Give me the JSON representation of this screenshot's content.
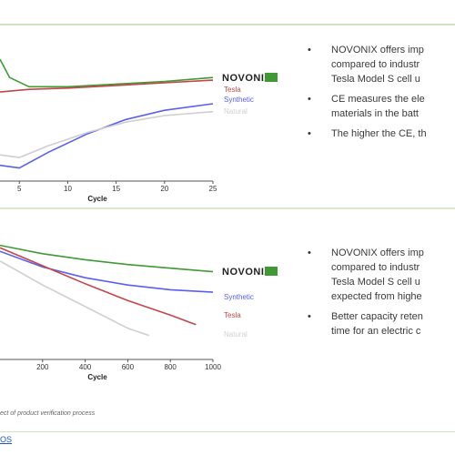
{
  "chart_data": [
    {
      "type": "line",
      "title": "",
      "xlabel": "Cycle",
      "ylabel": "",
      "x_ticks": [
        "5",
        "10",
        "15",
        "20",
        "25"
      ],
      "xlim": [
        3,
        25
      ],
      "ylim": [
        0,
        1
      ],
      "series": [
        {
          "name": "NOVONIX",
          "color": "#3f9a36",
          "points": [
            [
              3,
              0.93
            ],
            [
              4,
              0.79
            ],
            [
              6,
              0.72
            ],
            [
              10,
              0.72
            ],
            [
              15,
              0.74
            ],
            [
              20,
              0.76
            ],
            [
              25,
              0.79
            ]
          ]
        },
        {
          "name": "Tesla",
          "color": "#c2474a",
          "points": [
            [
              3,
              0.68
            ],
            [
              6,
              0.7
            ],
            [
              10,
              0.71
            ],
            [
              15,
              0.73
            ],
            [
              20,
              0.75
            ],
            [
              25,
              0.77
            ]
          ]
        },
        {
          "name": "Synthetic",
          "color": "#5a5ef2",
          "points": [
            [
              3,
              0.12
            ],
            [
              5,
              0.1
            ],
            [
              8,
              0.22
            ],
            [
              12,
              0.36
            ],
            [
              16,
              0.47
            ],
            [
              20,
              0.54
            ],
            [
              25,
              0.59
            ]
          ]
        },
        {
          "name": "Natural",
          "color": "#cfcfcf",
          "points": [
            [
              3,
              0.2
            ],
            [
              5,
              0.18
            ],
            [
              8,
              0.27
            ],
            [
              12,
              0.37
            ],
            [
              16,
              0.45
            ],
            [
              20,
              0.5
            ],
            [
              25,
              0.53
            ]
          ]
        }
      ]
    },
    {
      "type": "line",
      "title": "",
      "xlabel": "Cycle",
      "ylabel": "",
      "x_ticks": [
        "200",
        "400",
        "600",
        "800",
        "1000"
      ],
      "xlim": [
        0,
        1000
      ],
      "ylim": [
        0,
        1
      ],
      "series": [
        {
          "name": "NOVONIX",
          "color": "#3f9a36",
          "points": [
            [
              0,
              0.95
            ],
            [
              200,
              0.88
            ],
            [
              400,
              0.83
            ],
            [
              600,
              0.79
            ],
            [
              800,
              0.76
            ],
            [
              1000,
              0.73
            ]
          ]
        },
        {
          "name": "Synthetic",
          "color": "#5a5ef2",
          "points": [
            [
              0,
              0.9
            ],
            [
              200,
              0.77
            ],
            [
              400,
              0.68
            ],
            [
              600,
              0.62
            ],
            [
              800,
              0.58
            ],
            [
              1000,
              0.56
            ]
          ]
        },
        {
          "name": "Tesla",
          "color": "#c2474a",
          "points": [
            [
              0,
              0.93
            ],
            [
              200,
              0.78
            ],
            [
              400,
              0.63
            ],
            [
              600,
              0.49
            ],
            [
              800,
              0.37
            ],
            [
              920,
              0.29
            ]
          ]
        },
        {
          "name": "Natural",
          "color": "#cfcfcf",
          "points": [
            [
              0,
              0.82
            ],
            [
              200,
              0.62
            ],
            [
              400,
              0.44
            ],
            [
              600,
              0.26
            ],
            [
              700,
              0.2
            ]
          ]
        }
      ]
    }
  ],
  "bullets_top": [
    "NOVONIX offers imp\ncompared to industr\nTesla Model S cell u",
    "CE measures the ele\nmaterials in the batt",
    "The higher the CE, th"
  ],
  "bullets_bottom": [
    "NOVONIX offers imp\ncompared to industr\nTesla Model S cell u\nexpected from highe",
    "Better capacity reten\ntime for an electric c"
  ],
  "footnote": "ect of product verification process",
  "link": "OS"
}
